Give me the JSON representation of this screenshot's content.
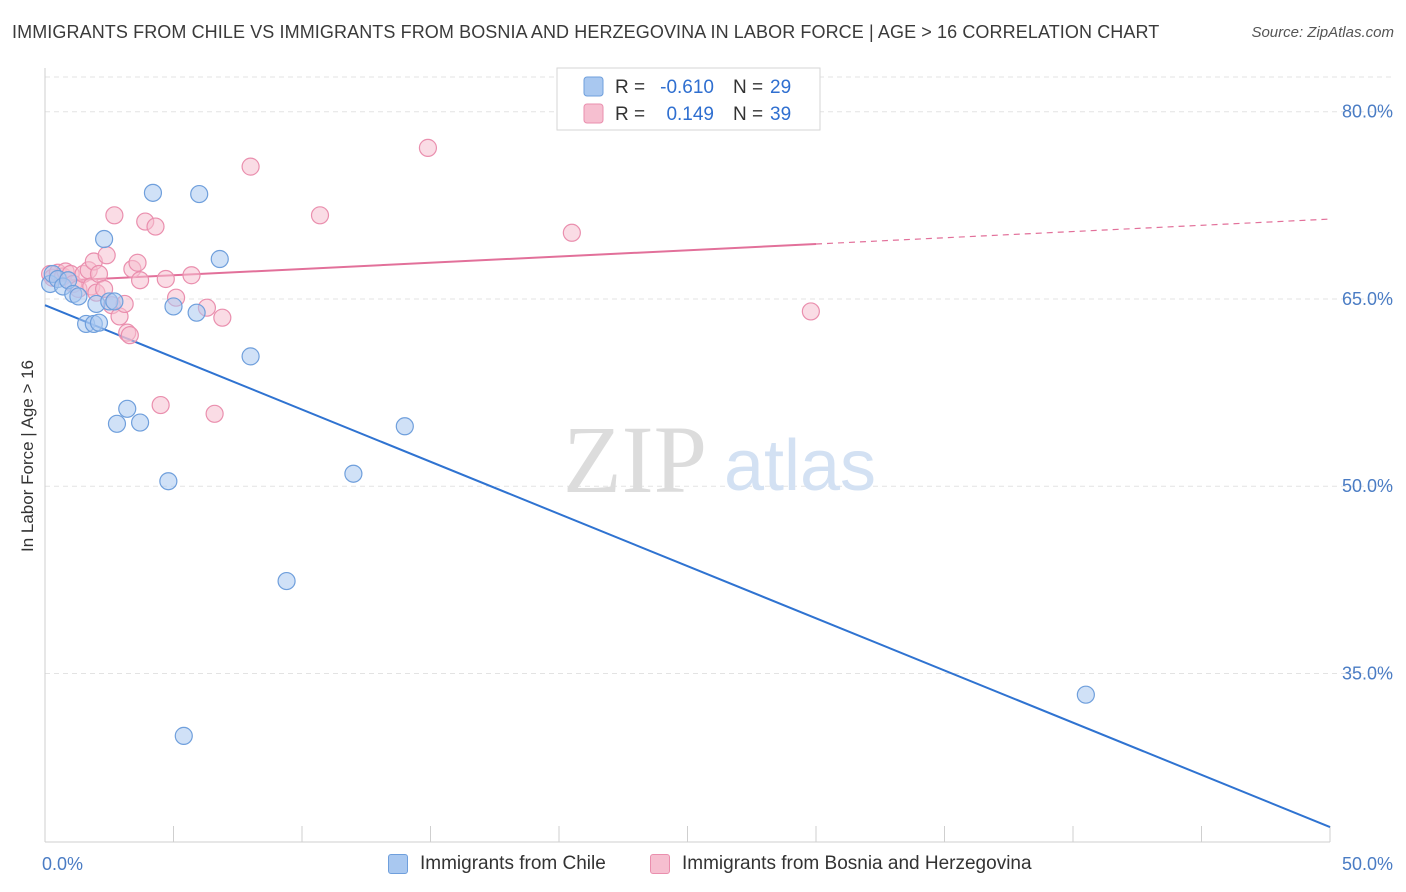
{
  "header": {
    "title": "IMMIGRANTS FROM CHILE VS IMMIGRANTS FROM BOSNIA AND HERZEGOVINA IN LABOR FORCE | AGE > 16 CORRELATION CHART",
    "source": "Source: ZipAtlas.com"
  },
  "watermark": {
    "zip": "ZIP",
    "atlas": "atlas"
  },
  "colors": {
    "chile_fill": "#a9c8f0",
    "chile_stroke": "#6f9fdc",
    "chile_line": "#2f73d1",
    "bosnia_fill": "#f6bfd0",
    "bosnia_stroke": "#ea8fae",
    "bosnia_line": "#e2709a",
    "tick_label": "#4a7cc4"
  },
  "legend_box": {
    "chile": {
      "r_label": "R = ",
      "r_value": "-0.610",
      "n_label": "N = ",
      "n_value": "29"
    },
    "bosnia": {
      "r_label": "R = ",
      "r_value": "0.149",
      "n_label": "N = ",
      "n_value": "39"
    }
  },
  "chart_data": {
    "type": "scatter",
    "title": "IMMIGRANTS FROM CHILE VS IMMIGRANTS FROM BOSNIA AND HERZEGOVINA IN LABOR FORCE | AGE > 16 CORRELATION CHART",
    "xlabel": "",
    "ylabel": "In Labor Force | Age > 16",
    "xlim": [
      0,
      50
    ],
    "ylim": [
      21.5,
      83.5
    ],
    "x_tick_labels": [
      {
        "value": 0,
        "label": "0.0%"
      },
      {
        "value": 50,
        "label": "50.0%"
      }
    ],
    "y_tick_labels": [
      {
        "value": 80,
        "label": "80.0%"
      },
      {
        "value": 65,
        "label": "65.0%"
      },
      {
        "value": 50,
        "label": "50.0%"
      },
      {
        "value": 35,
        "label": "35.0%"
      }
    ],
    "grid": true,
    "legend_position": "bottom",
    "series": [
      {
        "name": "Immigrants from Chile",
        "points": [
          [
            0.2,
            66.2
          ],
          [
            0.3,
            67.0
          ],
          [
            0.5,
            66.6
          ],
          [
            0.7,
            66.0
          ],
          [
            0.9,
            66.5
          ],
          [
            1.1,
            65.4
          ],
          [
            1.3,
            65.2
          ],
          [
            1.6,
            63.0
          ],
          [
            1.9,
            63.0
          ],
          [
            2.0,
            64.6
          ],
          [
            2.1,
            63.1
          ],
          [
            2.3,
            69.8
          ],
          [
            2.5,
            64.8
          ],
          [
            2.7,
            64.8
          ],
          [
            2.8,
            55.0
          ],
          [
            3.2,
            56.2
          ],
          [
            3.7,
            55.1
          ],
          [
            4.2,
            73.5
          ],
          [
            4.8,
            50.4
          ],
          [
            5.0,
            64.4
          ],
          [
            5.4,
            30.0
          ],
          [
            5.9,
            63.9
          ],
          [
            6.0,
            73.4
          ],
          [
            6.8,
            68.2
          ],
          [
            8.0,
            60.4
          ],
          [
            9.4,
            42.4
          ],
          [
            12.0,
            51.0
          ],
          [
            14.0,
            54.8
          ],
          [
            40.5,
            33.3
          ]
        ],
        "trendline": {
          "x": [
            0,
            50
          ],
          "y": [
            64.5,
            22.7
          ],
          "style": "solid"
        }
      },
      {
        "name": "Immigrants from Bosnia and Herzegovina",
        "points": [
          [
            0.2,
            67.0
          ],
          [
            0.3,
            66.7
          ],
          [
            0.5,
            67.1
          ],
          [
            0.7,
            66.8
          ],
          [
            0.8,
            67.2
          ],
          [
            1.0,
            67.0
          ],
          [
            1.1,
            66.2
          ],
          [
            1.3,
            65.8
          ],
          [
            1.5,
            67.0
          ],
          [
            1.7,
            67.3
          ],
          [
            1.8,
            66.0
          ],
          [
            1.9,
            68.0
          ],
          [
            2.0,
            65.5
          ],
          [
            2.1,
            67.0
          ],
          [
            2.3,
            65.8
          ],
          [
            2.4,
            68.5
          ],
          [
            2.6,
            64.5
          ],
          [
            2.7,
            71.7
          ],
          [
            2.9,
            63.6
          ],
          [
            3.1,
            64.6
          ],
          [
            3.2,
            62.3
          ],
          [
            3.3,
            62.1
          ],
          [
            3.4,
            67.4
          ],
          [
            3.6,
            67.9
          ],
          [
            3.7,
            66.5
          ],
          [
            3.9,
            71.2
          ],
          [
            4.3,
            70.8
          ],
          [
            4.7,
            66.6
          ],
          [
            5.1,
            65.1
          ],
          [
            5.7,
            66.9
          ],
          [
            6.3,
            64.3
          ],
          [
            6.6,
            55.8
          ],
          [
            6.9,
            63.5
          ],
          [
            8.0,
            75.6
          ],
          [
            10.7,
            71.7
          ],
          [
            14.9,
            77.1
          ],
          [
            20.5,
            70.3
          ],
          [
            29.8,
            64.0
          ],
          [
            4.5,
            56.5
          ]
        ],
        "trendline": {
          "x": [
            0,
            50
          ],
          "y": [
            66.4,
            71.4
          ],
          "style": "solid to x=30, dashed beyond",
          "solid_end_x": 30
        }
      }
    ]
  }
}
